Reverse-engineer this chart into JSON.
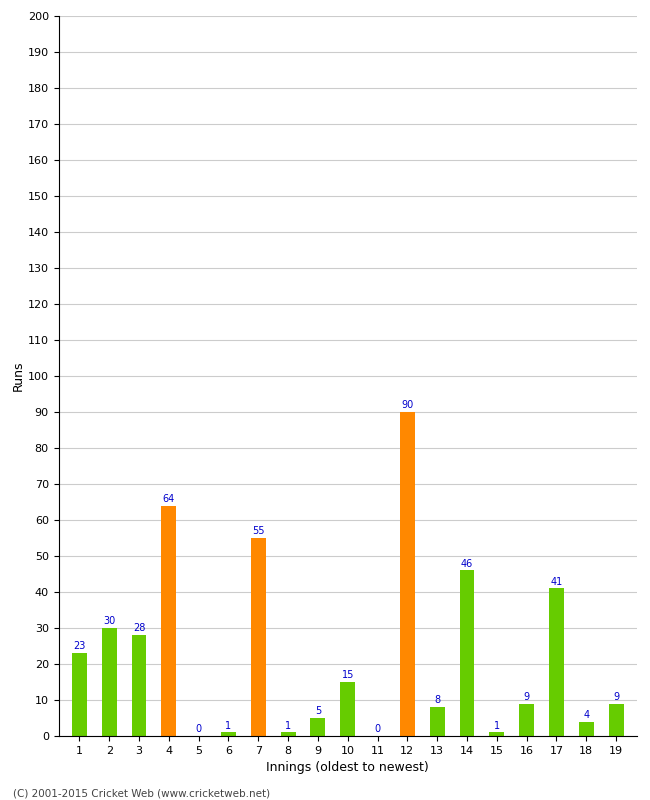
{
  "title": "",
  "xlabel": "Innings (oldest to newest)",
  "ylabel": "Runs",
  "footer": "(C) 2001-2015 Cricket Web (www.cricketweb.net)",
  "innings": [
    1,
    2,
    3,
    4,
    5,
    6,
    7,
    8,
    9,
    10,
    11,
    12,
    13,
    14,
    15,
    16,
    17,
    18,
    19
  ],
  "values": [
    23,
    30,
    28,
    64,
    0,
    1,
    55,
    1,
    5,
    15,
    0,
    90,
    8,
    46,
    1,
    9,
    41,
    4,
    9
  ],
  "colors": [
    "#66cc00",
    "#66cc00",
    "#66cc00",
    "#ff8800",
    "#66cc00",
    "#66cc00",
    "#ff8800",
    "#66cc00",
    "#66cc00",
    "#66cc00",
    "#66cc00",
    "#ff8800",
    "#66cc00",
    "#66cc00",
    "#66cc00",
    "#66cc00",
    "#66cc00",
    "#66cc00",
    "#66cc00"
  ],
  "ylim": [
    0,
    200
  ],
  "ytick_step": 10,
  "background_color": "#ffffff",
  "grid_color": "#cccccc",
  "label_color": "#0000cc",
  "label_fontsize": 7,
  "bar_width": 0.5,
  "figsize": [
    6.5,
    8.0
  ],
  "dpi": 100
}
